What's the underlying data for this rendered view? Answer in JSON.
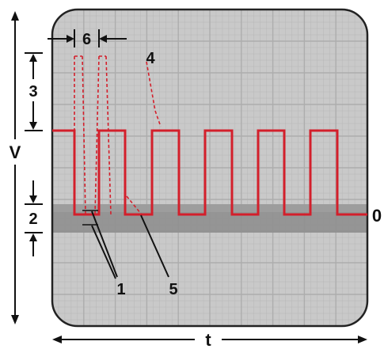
{
  "labels": {
    "voltage_axis": "V",
    "time_axis": "t",
    "zero_level": "0",
    "callout_1": "1",
    "callout_2": "2",
    "callout_3": "3",
    "callout_4": "4",
    "callout_5": "5",
    "callout_6": "6"
  },
  "colors": {
    "screen_background": "#c9c9c9",
    "grid_line": "#adadad",
    "noise_band": "#8f8f8f",
    "waveform": "#d31f2b",
    "frame_border": "#222222",
    "annotation": "#111111"
  },
  "grid": {
    "columns": 10,
    "rows": 10
  }
}
